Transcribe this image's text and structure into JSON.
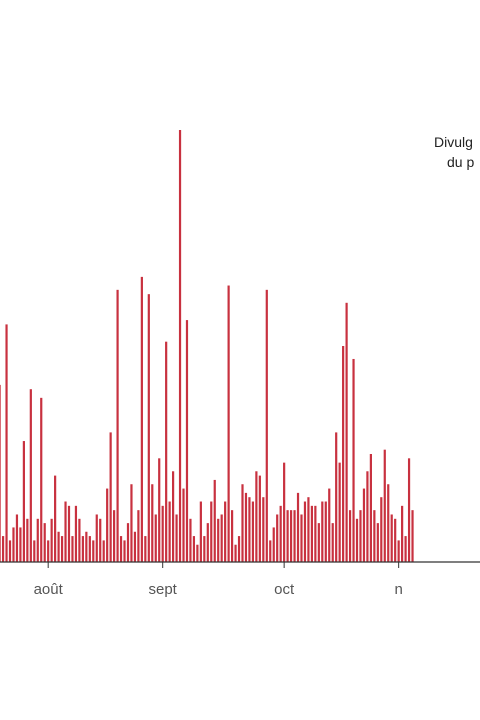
{
  "chart_data": {
    "type": "bar",
    "title": "",
    "xlabel": "",
    "ylabel": "",
    "bar_color": "#c8313f",
    "axis_color": "#333333",
    "x_tick_labels": [
      "août",
      "sept",
      "oct",
      "n"
    ],
    "x_tick_positions": [
      13,
      46,
      81,
      114
    ],
    "annotation": {
      "lines": [
        "Divulg",
        "du p"
      ],
      "anchor_bar": 117
    },
    "ylim": [
      0,
      100
    ],
    "x_start": -1,
    "values": [
      41,
      6,
      55,
      5,
      8,
      11,
      8,
      28,
      10,
      40,
      5,
      10,
      38,
      9,
      5,
      10,
      20,
      7,
      6,
      14,
      13,
      6,
      13,
      10,
      6,
      7,
      6,
      5,
      11,
      10,
      5,
      17,
      30,
      12,
      63,
      6,
      5,
      9,
      18,
      7,
      12,
      66,
      6,
      62,
      18,
      11,
      24,
      13,
      51,
      14,
      21,
      11,
      100,
      17,
      56,
      10,
      6,
      4,
      14,
      6,
      9,
      14,
      19,
      10,
      11,
      14,
      64,
      12,
      4,
      6,
      18,
      16,
      15,
      14,
      21,
      20,
      15,
      63,
      5,
      8,
      11,
      13,
      23,
      12,
      12,
      12,
      16,
      11,
      14,
      15,
      13,
      13,
      9,
      14,
      14,
      17,
      9,
      30,
      23,
      50,
      60,
      12,
      47,
      10,
      12,
      17,
      21,
      25,
      12,
      9,
      15,
      26,
      18,
      11,
      10,
      5,
      13,
      6,
      24,
      12
    ]
  }
}
